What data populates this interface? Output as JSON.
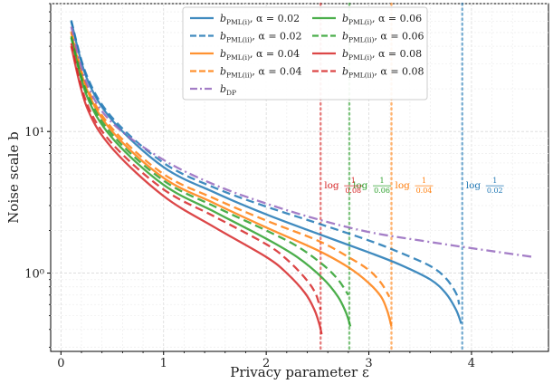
{
  "chart_data": {
    "type": "line",
    "xlabel": "Privacy parameter ε",
    "ylabel": "Noise scale b",
    "xlim": [
      -0.1,
      4.75
    ],
    "ylim": [
      0.28,
      80
    ],
    "yscale": "log",
    "grid": true,
    "legend_position": "top-center",
    "x_ticks": [
      {
        "v": 0,
        "label": "0"
      },
      {
        "v": 1,
        "label": "1"
      },
      {
        "v": 2,
        "label": "2"
      },
      {
        "v": 3,
        "label": "3"
      },
      {
        "v": 4,
        "label": "4"
      }
    ],
    "y_ticks": [
      {
        "v": 1,
        "label": "10⁰"
      },
      {
        "v": 10,
        "label": "10¹"
      }
    ],
    "series": [
      {
        "name": "b_PML(i), α=0.02",
        "legend": {
          "main": "b",
          "sub": "PML(i)",
          "rest": ", α = 0.02"
        },
        "color": "#1f77b4",
        "dash": "solid",
        "x": [
          0.1,
          0.25,
          0.5,
          1.0,
          1.5,
          2.0,
          2.5,
          3.0,
          3.3,
          3.6,
          3.75,
          3.85,
          3.9
        ],
        "y": [
          60,
          24,
          12,
          5.6,
          3.7,
          2.6,
          1.9,
          1.4,
          1.15,
          0.9,
          0.72,
          0.55,
          0.44
        ]
      },
      {
        "name": "b_PML(ii), α=0.02",
        "legend": {
          "main": "b",
          "sub": "PML(ii)",
          "rest": ", α = 0.02"
        },
        "color": "#1f77b4",
        "dash": "dashed",
        "x": [
          0.1,
          0.25,
          0.5,
          1.0,
          1.5,
          2.0,
          2.5,
          3.0,
          3.3,
          3.6,
          3.75,
          3.85,
          3.88
        ],
        "y": [
          61,
          25,
          12.5,
          6.0,
          4.0,
          2.95,
          2.25,
          1.7,
          1.4,
          1.12,
          0.92,
          0.72,
          0.6
        ]
      },
      {
        "name": "b_PML(i), α=0.04",
        "legend": {
          "main": "b",
          "sub": "PML(i)",
          "rest": ", α = 0.04"
        },
        "color": "#ff7f0e",
        "dash": "solid",
        "x": [
          0.1,
          0.25,
          0.5,
          1.0,
          1.5,
          2.0,
          2.5,
          2.8,
          3.0,
          3.12,
          3.18,
          3.22
        ],
        "y": [
          50,
          20,
          10,
          4.7,
          3.1,
          2.1,
          1.45,
          1.1,
          0.85,
          0.68,
          0.54,
          0.42
        ]
      },
      {
        "name": "b_PML(ii), α=0.04",
        "legend": {
          "main": "b",
          "sub": "PML(ii)",
          "rest": ", α = 0.04"
        },
        "color": "#ff7f0e",
        "dash": "dashed",
        "x": [
          0.1,
          0.25,
          0.5,
          1.0,
          1.5,
          2.0,
          2.5,
          2.8,
          3.0,
          3.12,
          3.2
        ],
        "y": [
          51,
          21,
          10.5,
          5.0,
          3.35,
          2.35,
          1.7,
          1.3,
          1.05,
          0.85,
          0.68
        ]
      },
      {
        "name": "b_PML(i), α=0.06",
        "legend": {
          "main": "b",
          "sub": "PML(i)",
          "rest": ", α = 0.06"
        },
        "color": "#2ca02c",
        "dash": "solid",
        "x": [
          0.1,
          0.25,
          0.5,
          1.0,
          1.5,
          2.0,
          2.3,
          2.55,
          2.7,
          2.78,
          2.82
        ],
        "y": [
          46,
          18,
          9.0,
          4.2,
          2.7,
          1.75,
          1.3,
          0.92,
          0.68,
          0.52,
          0.42
        ]
      },
      {
        "name": "b_PML(ii), α=0.06",
        "legend": {
          "main": "b",
          "sub": "PML(ii)",
          "rest": ", α = 0.06"
        },
        "color": "#2ca02c",
        "dash": "dashed",
        "x": [
          0.1,
          0.25,
          0.5,
          1.0,
          1.5,
          2.0,
          2.3,
          2.55,
          2.7,
          2.8
        ],
        "y": [
          47,
          19,
          9.5,
          4.5,
          2.95,
          2.0,
          1.55,
          1.15,
          0.9,
          0.7
        ]
      },
      {
        "name": "b_PML(i), α=0.08",
        "legend": {
          "main": "b",
          "sub": "PML(i)",
          "rest": ", α = 0.08"
        },
        "color": "#d62728",
        "dash": "solid",
        "x": [
          0.1,
          0.25,
          0.5,
          1.0,
          1.5,
          2.0,
          2.2,
          2.38,
          2.47,
          2.52,
          2.54
        ],
        "y": [
          40,
          15,
          7.6,
          3.5,
          2.1,
          1.3,
          1.0,
          0.72,
          0.55,
          0.43,
          0.37
        ]
      },
      {
        "name": "b_PML(ii), α=0.08",
        "legend": {
          "main": "b",
          "sub": "PML(ii)",
          "rest": ", α = 0.08"
        },
        "color": "#d62728",
        "dash": "dashed",
        "x": [
          0.1,
          0.25,
          0.5,
          1.0,
          1.5,
          2.0,
          2.2,
          2.38,
          2.48,
          2.53
        ],
        "y": [
          42,
          16,
          8.2,
          3.9,
          2.5,
          1.6,
          1.25,
          0.92,
          0.72,
          0.55
        ]
      },
      {
        "name": "b_DP",
        "legend": {
          "main": "b",
          "sub": "DP",
          "rest": ""
        },
        "color": "#9467bd",
        "dash": "dashdot",
        "x": [
          0.1,
          0.25,
          0.5,
          1.0,
          1.5,
          2.0,
          2.5,
          3.0,
          3.5,
          4.0,
          4.6
        ],
        "y": [
          55,
          22,
          11.5,
          6.3,
          4.2,
          3.1,
          2.4,
          1.95,
          1.7,
          1.5,
          1.3
        ]
      }
    ],
    "vlines": [
      {
        "x": 3.91,
        "color": "#1f77b4",
        "label": {
          "prefix": "log",
          "num": "1",
          "den": "0.02"
        },
        "label_y": 4.2
      },
      {
        "x": 3.22,
        "color": "#ff7f0e",
        "label": {
          "prefix": "log",
          "num": "1",
          "den": "0.04"
        },
        "label_y": 4.2
      },
      {
        "x": 2.81,
        "color": "#2ca02c",
        "label": {
          "prefix": "log",
          "num": "1",
          "den": "0.06"
        },
        "label_y": 4.2
      },
      {
        "x": 2.53,
        "color": "#d62728",
        "label": {
          "prefix": "log",
          "num": "1",
          "den": "0.08"
        },
        "label_y": 4.2
      }
    ]
  }
}
